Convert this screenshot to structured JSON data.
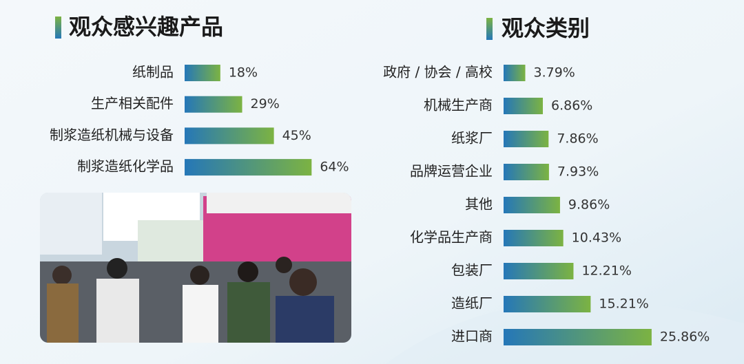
{
  "chart_data": [
    {
      "type": "hbar",
      "title": "观众感兴趣产品",
      "categories": [
        "纸制品",
        "生产相关配件",
        "制浆造纸机械与设备",
        "制浆造纸化学品"
      ],
      "values": [
        18,
        29,
        45,
        64
      ],
      "value_labels": [
        "18%",
        "29%",
        "45%",
        "64%"
      ],
      "colors": [
        "#2577b8",
        "#7cb342"
      ]
    },
    {
      "type": "hbar",
      "title": "观众类别",
      "categories": [
        "政府 / 协会 / 高校",
        "机械生产商",
        "纸浆厂",
        "品牌运营企业",
        "其他",
        "化学品生产商",
        "包装厂",
        "造纸厂",
        "进口商"
      ],
      "values": [
        3.79,
        6.86,
        7.86,
        7.93,
        9.86,
        10.43,
        12.21,
        15.21,
        25.86
      ],
      "value_labels": [
        "3.79%",
        "6.86%",
        "7.86%",
        "7.93%",
        "9.86%",
        "10.43%",
        "12.21%",
        "15.21%",
        "25.86%"
      ],
      "colors": [
        "#2577b8",
        "#7cb342"
      ]
    }
  ]
}
